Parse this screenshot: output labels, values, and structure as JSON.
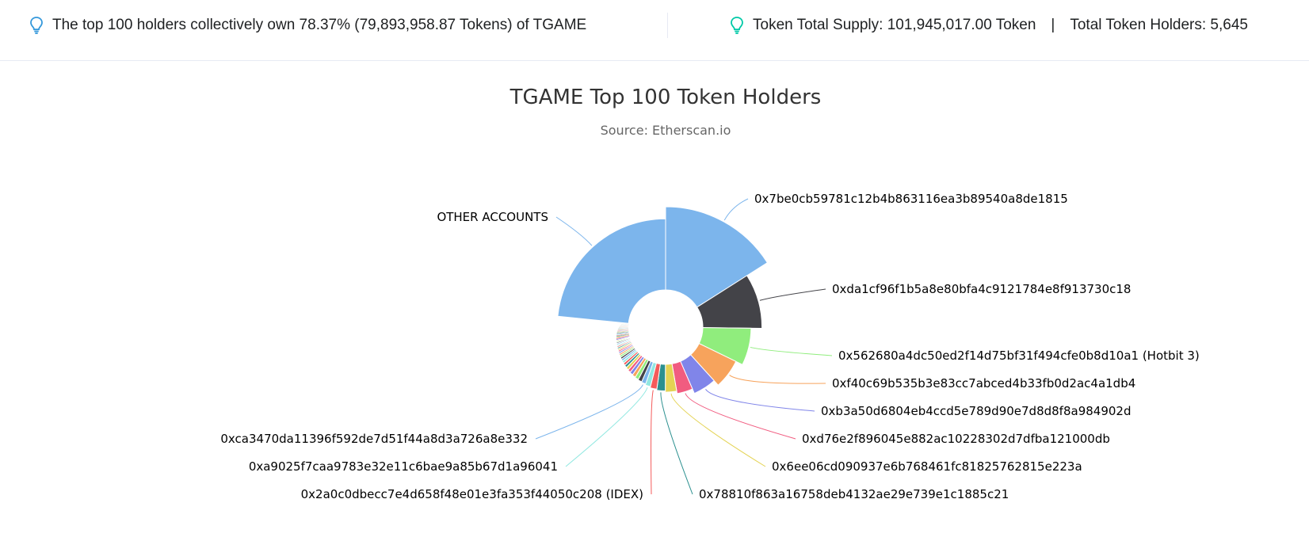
{
  "summary": {
    "top_holders_text": "The top 100 holders collectively own 78.37% (79,893,958.87 Tokens) of TGAME",
    "total_supply_text": "Token Total Supply: 101,945,017.00 Token",
    "separator": "|",
    "total_holders_text": "Total Token Holders: 5,645"
  },
  "icons": {
    "left": "lightbulb-icon",
    "right": "lightbulb-icon"
  },
  "colors": {
    "bulb_left": "#3498db",
    "bulb_right": "#00c9a7"
  },
  "chart_data": {
    "type": "pie",
    "variant": "variable-radius donut",
    "title": "TGAME Top 100 Token Holders",
    "subtitle": "Source: Etherscan.io",
    "start_angle_deg": 0,
    "slices": [
      {
        "label": "0x7be0cb59781c12b4b863116ea3b89540a8de1815",
        "value": 14.8,
        "radius": 1.0,
        "color": "#7cb5ec"
      },
      {
        "label": "0xda1cf96f1b5a8e80bfa4c9121784e8f913730c18",
        "value": 8.5,
        "radius": 0.8,
        "color": "#434348"
      },
      {
        "label": "0x562680a4dc50ed2f14d75bf31f494cfe0b8d10a1 (Hotbit 3)",
        "value": 6.5,
        "radius": 0.71,
        "color": "#90ed7d"
      },
      {
        "label": "0xf40c69b535b3e83cc7abced4b33fb0d2ac4a1db4",
        "value": 5.6,
        "radius": 0.65,
        "color": "#f7a35c"
      },
      {
        "label": "0xb3a50d6804eb4ccd5e789d90e7d8d8f8a984902d",
        "value": 4.8,
        "radius": 0.6,
        "color": "#8085e9"
      },
      {
        "label": "0xd76e2f896045e882ac10228302d7dfba121000db",
        "value": 3.5,
        "radius": 0.56,
        "color": "#f15c80"
      },
      {
        "label": "0x6ee06cd090937e6b768461fc81825762815e223a",
        "value": 2.6,
        "radius": 0.54,
        "color": "#e4d354"
      },
      {
        "label": "0x78810f863a16758deb4132ae29e739e1c1885c21",
        "value": 2.0,
        "radius": 0.53,
        "color": "#2b908f"
      },
      {
        "label": "0x2a0c0dbecc7e4d658f48e01e3fa353f44050c208 (IDEX)",
        "value": 1.6,
        "radius": 0.52,
        "color": "#f45b5b"
      },
      {
        "label": "0xa9025f7caa9783e32e11c6bae9a85b67d1a96041",
        "value": 1.3,
        "radius": 0.51,
        "color": "#91e8e1"
      },
      {
        "label": "0xca3470da11396f592de7d51f44a8d3a726a8e332",
        "value": 1.1,
        "radius": 0.5,
        "color": "#7cb5ec"
      },
      {
        "label": "",
        "value": 1.0,
        "radius": 0.495,
        "color": "#434348"
      },
      {
        "label": "",
        "value": 0.95,
        "radius": 0.49,
        "color": "#90ed7d"
      },
      {
        "label": "",
        "value": 0.9,
        "radius": 0.485,
        "color": "#f7a35c"
      },
      {
        "label": "",
        "value": 0.85,
        "radius": 0.48,
        "color": "#8085e9"
      },
      {
        "label": "",
        "value": 0.8,
        "radius": 0.475,
        "color": "#f15c80"
      },
      {
        "label": "",
        "value": 0.75,
        "radius": 0.47,
        "color": "#e4d354"
      },
      {
        "label": "",
        "value": 0.7,
        "radius": 0.466,
        "color": "#2b908f"
      },
      {
        "label": "",
        "value": 0.65,
        "radius": 0.462,
        "color": "#f45b5b"
      },
      {
        "label": "",
        "value": 0.62,
        "radius": 0.458,
        "color": "#91e8e1"
      },
      {
        "label": "",
        "value": 0.58,
        "radius": 0.455,
        "color": "#7cb5ec"
      },
      {
        "label": "",
        "value": 0.55,
        "radius": 0.452,
        "color": "#434348"
      },
      {
        "label": "",
        "value": 0.52,
        "radius": 0.449,
        "color": "#90ed7d"
      },
      {
        "label": "",
        "value": 0.5,
        "radius": 0.446,
        "color": "#f7a35c"
      },
      {
        "label": "",
        "value": 0.48,
        "radius": 0.443,
        "color": "#8085e9"
      },
      {
        "label": "",
        "value": 0.46,
        "radius": 0.44,
        "color": "#f15c80"
      },
      {
        "label": "",
        "value": 0.44,
        "radius": 0.438,
        "color": "#e4d354"
      },
      {
        "label": "",
        "value": 0.42,
        "radius": 0.436,
        "color": "#2b908f"
      },
      {
        "label": "",
        "value": 0.4,
        "radius": 0.434,
        "color": "#f45b5b"
      },
      {
        "label": "",
        "value": 0.38,
        "radius": 0.432,
        "color": "#91e8e1"
      },
      {
        "label": "",
        "value": 0.36,
        "radius": 0.43,
        "color": "#7cb5ec"
      },
      {
        "label": "",
        "value": 0.34,
        "radius": 0.428,
        "color": "#434348"
      },
      {
        "label": "",
        "value": 0.32,
        "radius": 0.426,
        "color": "#90ed7d"
      },
      {
        "label": "",
        "value": 0.3,
        "radius": 0.424,
        "color": "#f7a35c"
      },
      {
        "label": "",
        "value": 0.29,
        "radius": 0.422,
        "color": "#8085e9"
      },
      {
        "label": "",
        "value": 0.28,
        "radius": 0.42,
        "color": "#f15c80"
      },
      {
        "label": "",
        "value": 0.27,
        "radius": 0.418,
        "color": "#e4d354"
      },
      {
        "label": "",
        "value": 0.26,
        "radius": 0.416,
        "color": "#2b908f"
      },
      {
        "label": "",
        "value": 0.25,
        "radius": 0.414,
        "color": "#f45b5b"
      },
      {
        "label": "",
        "value": 0.24,
        "radius": 0.412,
        "color": "#91e8e1"
      },
      {
        "label": "",
        "value": 0.23,
        "radius": 0.41,
        "color": "#7cb5ec"
      },
      {
        "label": "",
        "value": 0.22,
        "radius": 0.408,
        "color": "#434348"
      },
      {
        "label": "",
        "value": 0.21,
        "radius": 0.406,
        "color": "#90ed7d"
      },
      {
        "label": "",
        "value": 0.2,
        "radius": 0.404,
        "color": "#f7a35c"
      },
      {
        "label": "",
        "value": 0.19,
        "radius": 0.402,
        "color": "#8085e9"
      },
      {
        "label": "",
        "value": 0.18,
        "radius": 0.4,
        "color": "#f15c80"
      },
      {
        "label": "",
        "value": 0.17,
        "radius": 0.398,
        "color": "#e4d354"
      },
      {
        "label": "",
        "value": 0.16,
        "radius": 0.396,
        "color": "#2b908f"
      },
      {
        "label": "",
        "value": 0.15,
        "radius": 0.394,
        "color": "#f45b5b"
      },
      {
        "label": "",
        "value": 0.14,
        "radius": 0.392,
        "color": "#91e8e1"
      },
      {
        "label": "",
        "value": 0.13,
        "radius": 0.39,
        "color": "#7cb5ec"
      },
      {
        "label": "",
        "value": 0.12,
        "radius": 0.388,
        "color": "#434348"
      },
      {
        "label": "",
        "value": 0.12,
        "radius": 0.386,
        "color": "#90ed7d"
      },
      {
        "label": "",
        "value": 0.11,
        "radius": 0.384,
        "color": "#f7a35c"
      },
      {
        "label": "",
        "value": 0.11,
        "radius": 0.382,
        "color": "#8085e9"
      },
      {
        "label": "",
        "value": 0.1,
        "radius": 0.38,
        "color": "#f15c80"
      },
      {
        "label": "",
        "value": 0.1,
        "radius": 0.378,
        "color": "#e4d354"
      },
      {
        "label": "",
        "value": 0.1,
        "radius": 0.376,
        "color": "#2b908f"
      },
      {
        "label": "",
        "value": 0.09,
        "radius": 0.374,
        "color": "#f45b5b"
      },
      {
        "label": "",
        "value": 0.09,
        "radius": 0.372,
        "color": "#91e8e1"
      },
      {
        "label": "",
        "value": 0.09,
        "radius": 0.37,
        "color": "#7cb5ec"
      },
      {
        "label": "",
        "value": 0.08,
        "radius": 0.368,
        "color": "#434348"
      },
      {
        "label": "",
        "value": 0.08,
        "radius": 0.366,
        "color": "#90ed7d"
      },
      {
        "label": "",
        "value": 0.08,
        "radius": 0.364,
        "color": "#f7a35c"
      },
      {
        "label": "",
        "value": 0.08,
        "radius": 0.362,
        "color": "#8085e9"
      },
      {
        "label": "",
        "value": 0.07,
        "radius": 0.36,
        "color": "#f15c80"
      },
      {
        "label": "",
        "value": 0.07,
        "radius": 0.358,
        "color": "#e4d354"
      },
      {
        "label": "",
        "value": 0.07,
        "radius": 0.356,
        "color": "#2b908f"
      },
      {
        "label": "",
        "value": 0.07,
        "radius": 0.354,
        "color": "#f45b5b"
      },
      {
        "label": "",
        "value": 0.06,
        "radius": 0.352,
        "color": "#91e8e1"
      },
      {
        "label": "OTHER ACCOUNTS",
        "value": 21.63,
        "radius": 0.9,
        "color": "#7cb5ec"
      }
    ]
  }
}
